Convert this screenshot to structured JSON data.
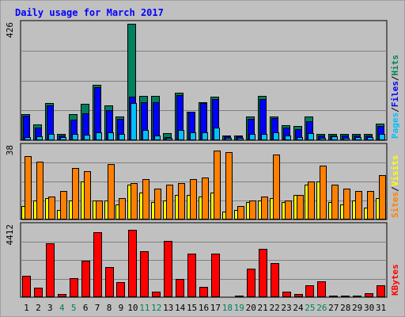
{
  "chart_data": {
    "type": "bar",
    "title": "Daily usage for March 2017",
    "categories": [
      "1",
      "2",
      "3",
      "4",
      "5",
      "6",
      "7",
      "8",
      "9",
      "10",
      "11",
      "12",
      "13",
      "14",
      "15",
      "16",
      "17",
      "18",
      "19",
      "20",
      "21",
      "22",
      "23",
      "24",
      "25",
      "26",
      "27",
      "28",
      "29",
      "30",
      "31"
    ],
    "weekend_days": [
      "4",
      "5",
      "11",
      "12",
      "18",
      "19",
      "25",
      "26"
    ],
    "panels": [
      {
        "key": "hits",
        "max_label": "426",
        "ylim": [
          0,
          426
        ],
        "grid": true,
        "legend": [
          {
            "text": "Pages",
            "color": "#00c0ff"
          },
          {
            "text": "Files",
            "color": "#0000ff"
          },
          {
            "text": "Hits",
            "color": "#00805c"
          }
        ],
        "series": [
          {
            "name": "Hits",
            "color": "#00805c",
            "values": [
              96,
              57,
              135,
              23,
              96,
              132,
              203,
              127,
              86,
              426,
              163,
              163,
              26,
              175,
              105,
              138,
              160,
              17,
              17,
              86,
              163,
              86,
              54,
              52,
              86,
              23,
              23,
              23,
              23,
              23,
              60
            ]
          },
          {
            "name": "Files",
            "color": "#0000ff",
            "values": [
              89,
              46,
              128,
              17,
              75,
              99,
              194,
              110,
              79,
              160,
              139,
              138,
              11,
              166,
              103,
              136,
              152,
              14,
              14,
              79,
              150,
              80,
              45,
              41,
              69,
              17,
              17,
              17,
              17,
              17,
              51
            ]
          },
          {
            "name": "Pages",
            "color": "#00c0ff",
            "values": [
              11,
              14,
              23,
              11,
              23,
              20,
              28,
              28,
              23,
              136,
              37,
              17,
              9,
              37,
              28,
              28,
              46,
              9,
              9,
              23,
              23,
              28,
              17,
              11,
              26,
              9,
              14,
              9,
              11,
              11,
              23
            ]
          }
        ]
      },
      {
        "key": "visits",
        "max_label": "38",
        "ylim": [
          0,
          38
        ],
        "grid": true,
        "legend": [
          {
            "text": "Sites",
            "color": "#ff8000"
          },
          {
            "text": "Visits",
            "color": "#ffff00"
          }
        ],
        "series": [
          {
            "name": "Visits",
            "color": "#ffff00",
            "values": [
              7,
              10,
              11,
              5,
              10,
              20,
              10,
              10,
              8,
              18,
              14,
              9,
              10,
              13,
              13,
              12,
              14,
              4,
              5,
              9,
              10,
              11,
              9,
              13,
              18,
              20,
              9,
              8,
              10,
              6,
              11
            ]
          },
          {
            "name": "Sites",
            "color": "#ff8000",
            "values": [
              33,
              30,
              12,
              15,
              27,
              25,
              10,
              29,
              11,
              19,
              21,
              16,
              18,
              19,
              21,
              22,
              36,
              35,
              7,
              10,
              12,
              34,
              10,
              13,
              20,
              28,
              18,
              16,
              15,
              15,
              23
            ]
          }
        ]
      },
      {
        "key": "kbytes",
        "max_label": "4412",
        "ylim": [
          0,
          4412
        ],
        "grid": true,
        "legend": [
          {
            "text": "KBytes",
            "color": "#ff0000"
          }
        ],
        "series": [
          {
            "name": "KBytes",
            "color": "#ff0000",
            "values": [
              1310,
              580,
              3320,
              180,
              1170,
              2240,
              4030,
              1870,
              910,
              4180,
              2850,
              320,
              3460,
              1120,
              2690,
              660,
              2690,
              60,
              90,
              1770,
              2990,
              2100,
              340,
              200,
              740,
              990,
              100,
              100,
              100,
              250,
              720
            ]
          }
        ]
      }
    ]
  }
}
